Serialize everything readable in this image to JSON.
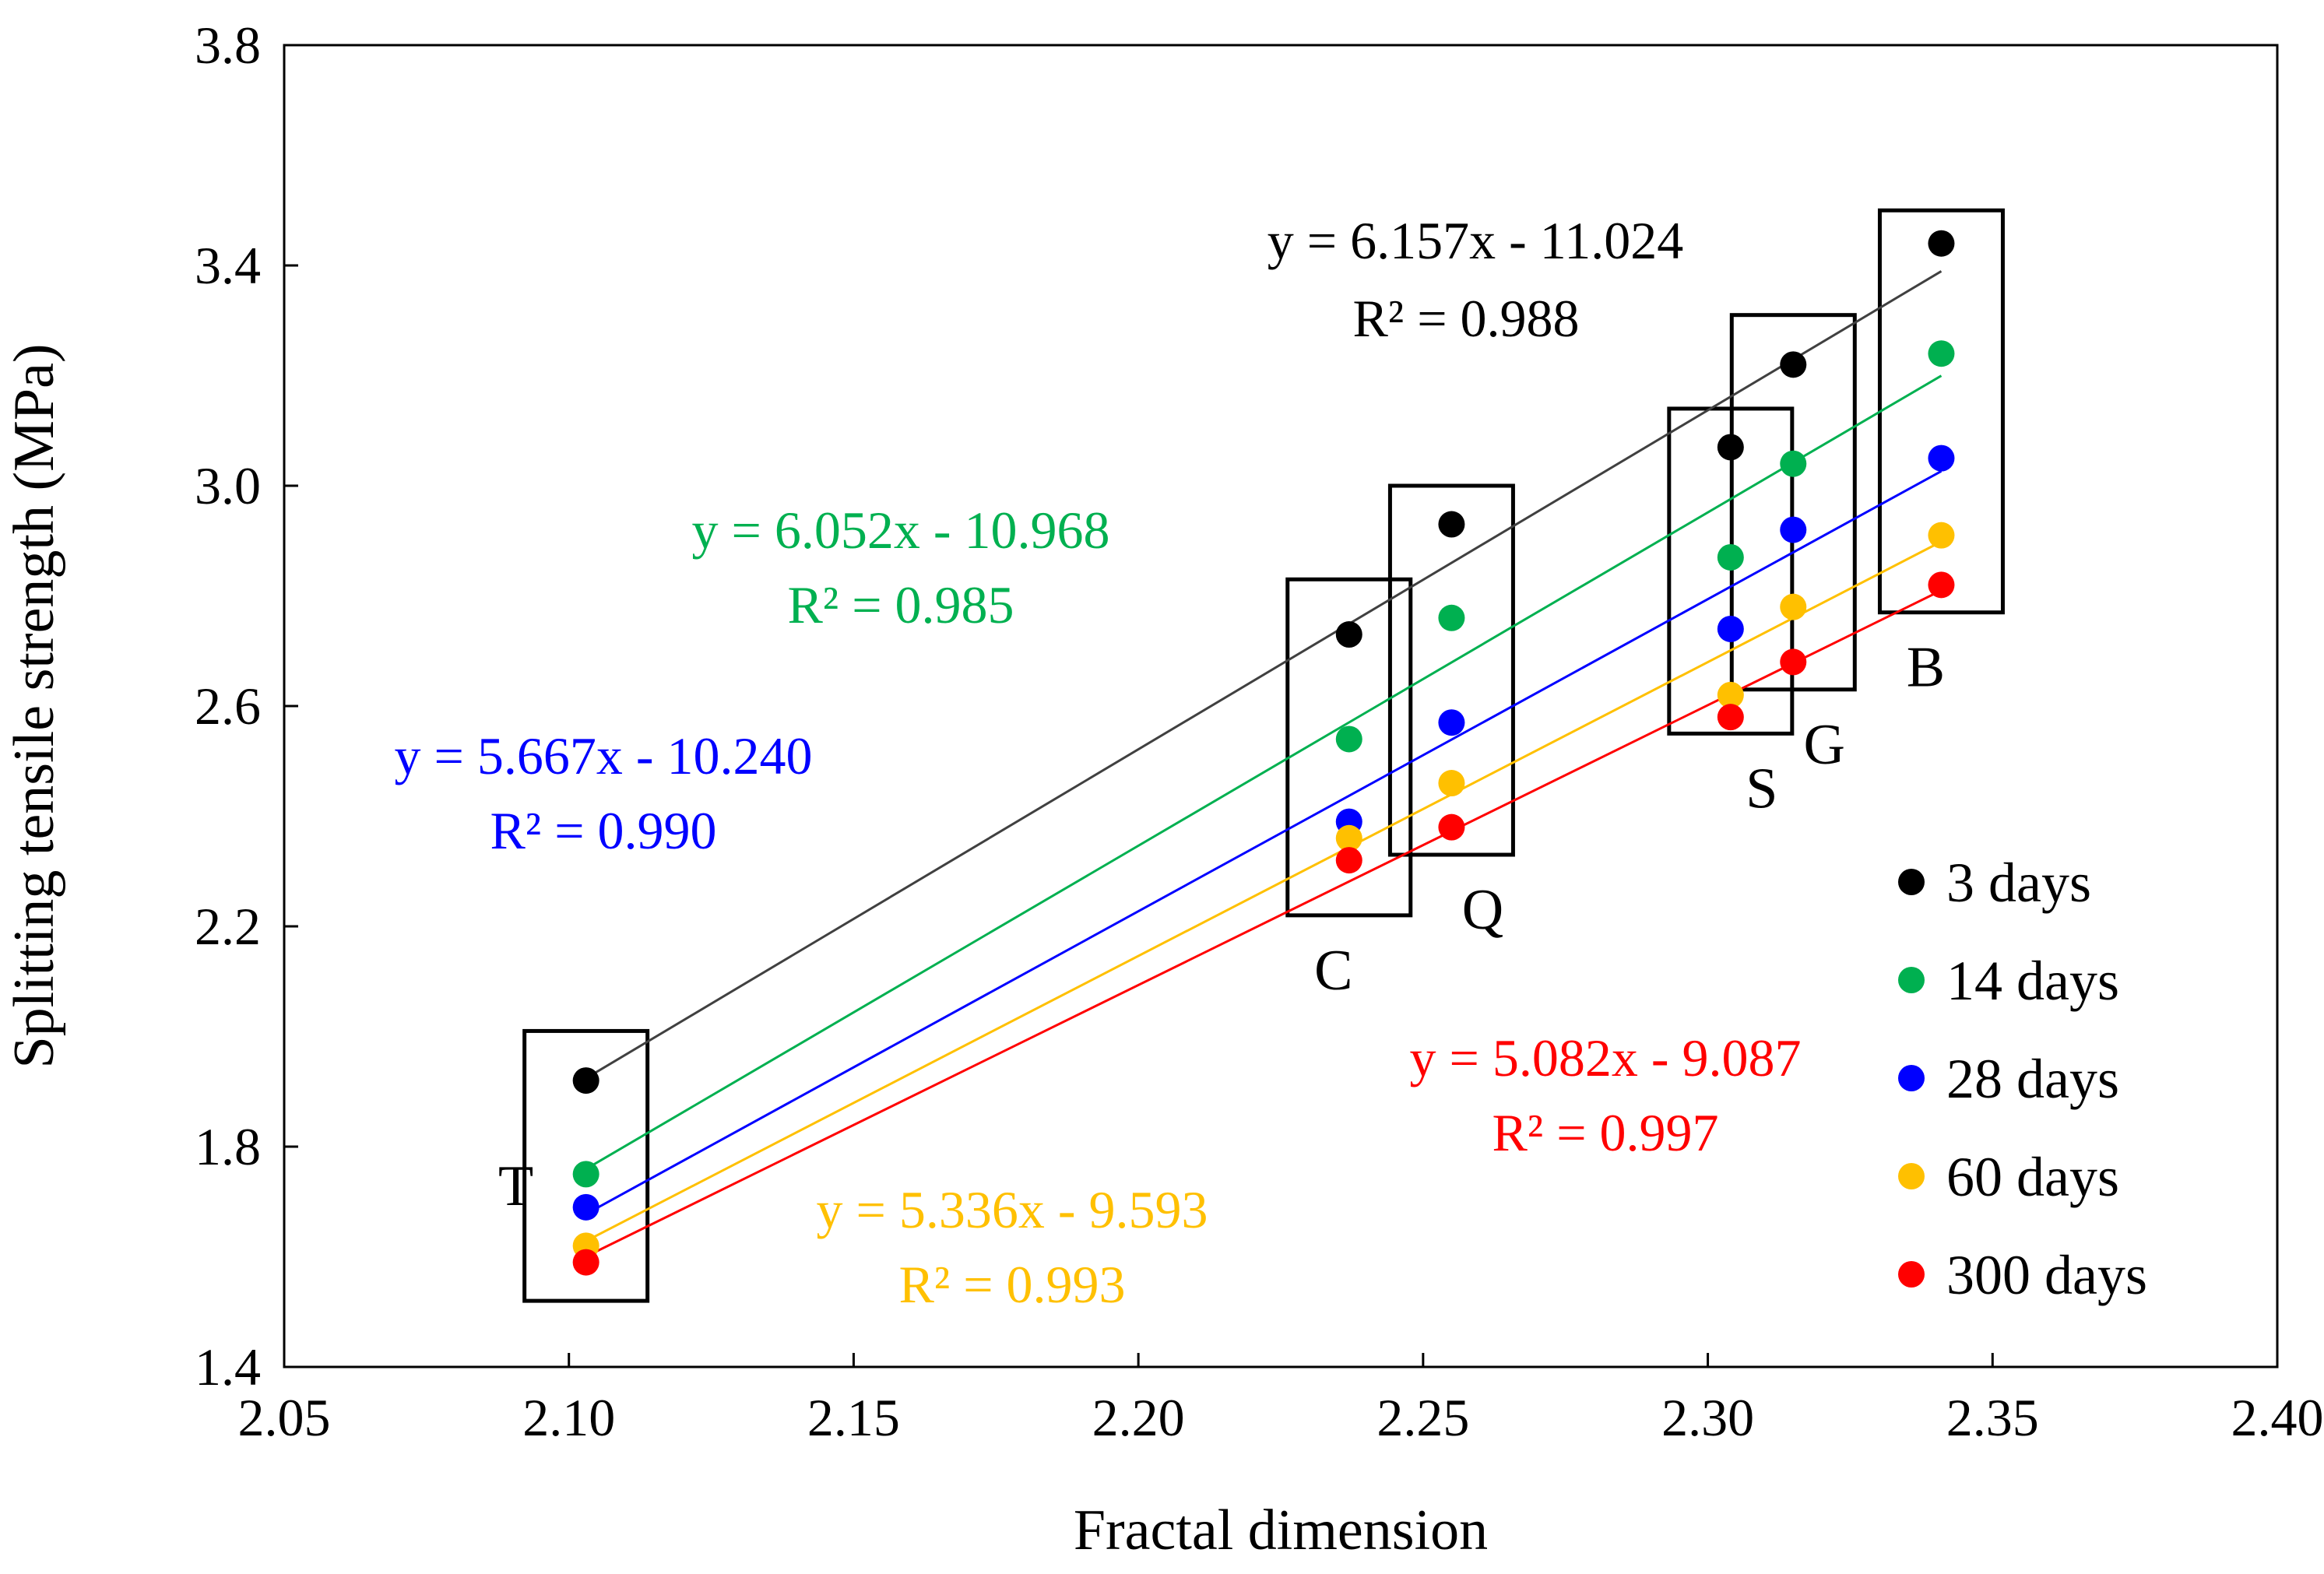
{
  "chart_data": {
    "type": "scatter",
    "title": "",
    "xlabel": "Fractal dimension",
    "ylabel": "Splitting tensile strength (MPa)",
    "xlim": [
      2.05,
      2.4
    ],
    "ylim": [
      1.4,
      3.8
    ],
    "xticks": [
      "2.05",
      "2.10",
      "2.15",
      "2.20",
      "2.25",
      "2.30",
      "2.35",
      "2.40"
    ],
    "yticks": [
      "1.4",
      "1.8",
      "2.2",
      "2.6",
      "3.0",
      "3.4",
      "3.8"
    ],
    "grid": false,
    "legend_position": "right",
    "x": [
      2.103,
      2.237,
      2.255,
      2.304,
      2.315,
      2.341
    ],
    "series": [
      {
        "name": "3 days",
        "color": "#000000",
        "values": [
          1.92,
          2.73,
          2.93,
          3.07,
          3.22,
          3.44
        ],
        "equation": "y = 6.157x - 11.024",
        "r2": "R² = 0.988",
        "fit": [
          6.157,
          -11.024
        ]
      },
      {
        "name": "14 days",
        "color": "#00b050",
        "values": [
          1.75,
          2.54,
          2.76,
          2.87,
          3.04,
          3.24
        ],
        "equation": "y = 6.052x - 10.968",
        "r2": "R² = 0.985",
        "fit": [
          6.052,
          -10.968
        ]
      },
      {
        "name": "28 days",
        "color": "#0000ff",
        "values": [
          1.69,
          2.39,
          2.57,
          2.74,
          2.92,
          3.05
        ],
        "equation": "y = 5.667x - 10.240",
        "r2": "R² = 0.990",
        "fit": [
          5.667,
          -10.24
        ]
      },
      {
        "name": "60 days",
        "color": "#ffc000",
        "values": [
          1.62,
          2.36,
          2.46,
          2.62,
          2.78,
          2.91
        ],
        "equation": "y = 5.336x - 9.593",
        "r2": "R² = 0.993",
        "fit": [
          5.336,
          -9.593
        ]
      },
      {
        "name": "300 days",
        "color": "#ff0000",
        "values": [
          1.59,
          2.32,
          2.38,
          2.58,
          2.68,
          2.82
        ],
        "equation": "y = 5.082x - 9.087",
        "r2": "R² = 0.997",
        "fit": [
          5.082,
          -9.087
        ]
      }
    ],
    "groups": [
      {
        "label": "T",
        "x": 2.103,
        "ymin": 1.52,
        "ymax": 2.01
      },
      {
        "label": "C",
        "x": 2.237,
        "ymin": 2.22,
        "ymax": 2.83
      },
      {
        "label": "Q",
        "x": 2.255,
        "ymin": 2.33,
        "ymax": 3.0
      },
      {
        "label": "S",
        "x": 2.304,
        "ymin": 2.55,
        "ymax": 3.14
      },
      {
        "label": "G",
        "x": 2.315,
        "ymin": 2.63,
        "ymax": 3.31
      },
      {
        "label": "B",
        "x": 2.341,
        "ymin": 2.77,
        "ymax": 3.5
      }
    ]
  }
}
